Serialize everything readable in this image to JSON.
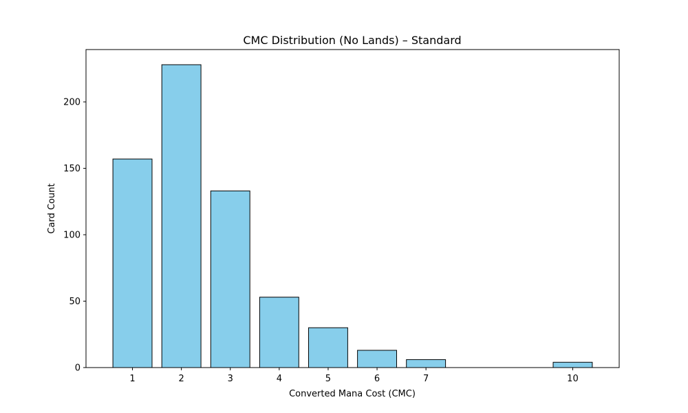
{
  "chart_data": {
    "type": "bar",
    "title": "CMC Distribution (No Lands) – Standard",
    "xlabel": "Converted Mana Cost (CMC)",
    "ylabel": "Card Count",
    "x": [
      1,
      2,
      3,
      4,
      5,
      6,
      7,
      10
    ],
    "values": [
      157,
      228,
      133,
      53,
      30,
      13,
      6,
      4
    ],
    "xticks": [
      1,
      2,
      3,
      4,
      5,
      6,
      7,
      10
    ],
    "xtick_labels": [
      "1",
      "2",
      "3",
      "4",
      "5",
      "6",
      "7",
      "10"
    ],
    "yticks": [
      0,
      50,
      100,
      150,
      200
    ],
    "ytick_labels": [
      "0",
      "50",
      "100",
      "150",
      "200"
    ],
    "xlim": [
      0.05,
      10.95
    ],
    "ylim": [
      0,
      239.4
    ],
    "bar_width": 0.8,
    "bar_color": "#87ceeb",
    "bar_edge_color": "#000000",
    "grid": false,
    "legend": false
  }
}
